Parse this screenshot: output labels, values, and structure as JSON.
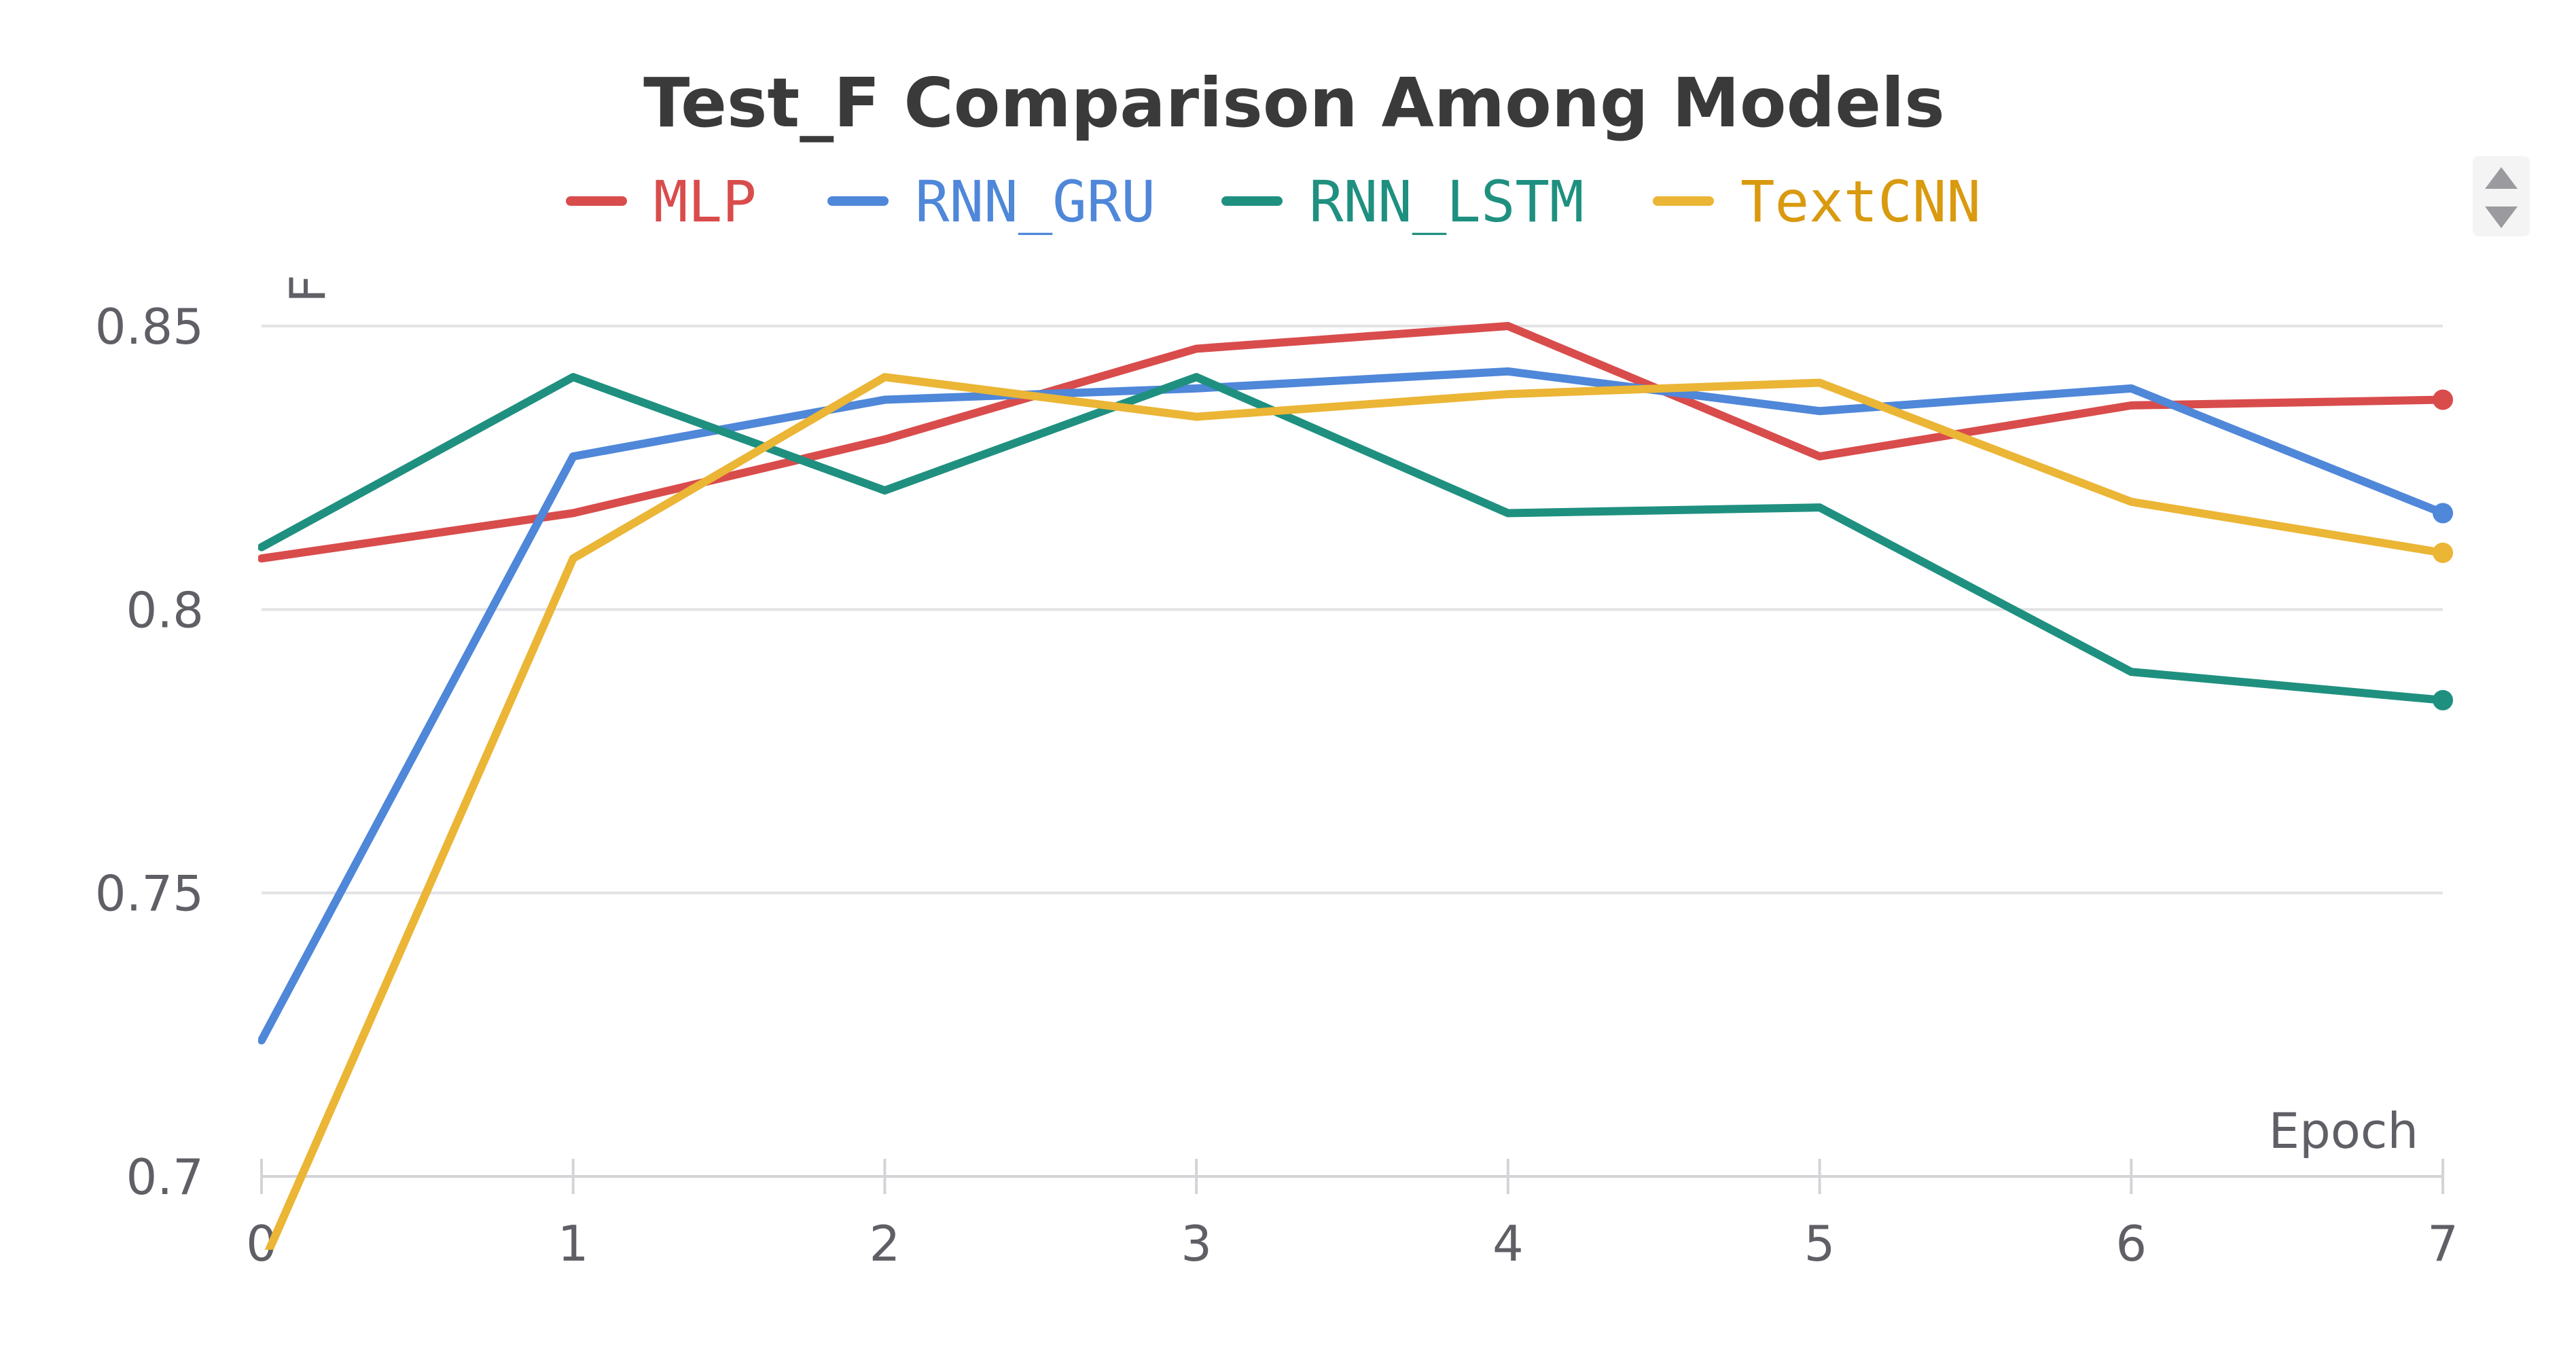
{
  "chart_data": {
    "type": "line",
    "title": "Test_F Comparison Among Models",
    "xlabel": "Epoch",
    "ylabel": "F",
    "x": [
      0,
      1,
      2,
      3,
      4,
      5,
      6,
      7
    ],
    "xlim": [
      0,
      7
    ],
    "ylim": [
      0.7,
      0.853
    ],
    "x_ticks": [
      "0",
      "1",
      "2",
      "3",
      "4",
      "5",
      "6",
      "7"
    ],
    "y_ticks": [
      {
        "value": 0.7,
        "label": "0.7"
      },
      {
        "value": 0.75,
        "label": "0.75"
      },
      {
        "value": 0.8,
        "label": "0.8"
      },
      {
        "value": 0.85,
        "label": "0.85"
      }
    ],
    "grid": true,
    "legend_position": "top-center",
    "series": [
      {
        "name": "MLP",
        "color": "#d94c4c",
        "values": [
          0.809,
          0.817,
          0.83,
          0.846,
          0.85,
          0.827,
          0.836,
          0.837
        ]
      },
      {
        "name": "RNN_GRU",
        "color": "#4f87d9",
        "values": [
          0.724,
          0.827,
          0.837,
          0.839,
          0.842,
          0.835,
          0.839,
          0.817
        ]
      },
      {
        "name": "RNN_LSTM",
        "color": "#1f9080",
        "values": [
          0.811,
          0.841,
          0.821,
          0.841,
          0.817,
          0.818,
          0.789,
          0.784
        ]
      },
      {
        "name": "TextCNN",
        "color": "#ebb535",
        "values": [
          0.684,
          0.809,
          0.841,
          0.834,
          0.838,
          0.84,
          0.819,
          0.81
        ]
      }
    ]
  },
  "legend_text_colors": {
    "MLP": "#d94c4c",
    "RNN_GRU": "#4f87d9",
    "RNN_LSTM": "#1f9080",
    "TextCNN": "#d99a0f"
  },
  "controls": {
    "scroll_up_icon": "triangle-up-icon",
    "scroll_down_icon": "triangle-down-icon"
  }
}
